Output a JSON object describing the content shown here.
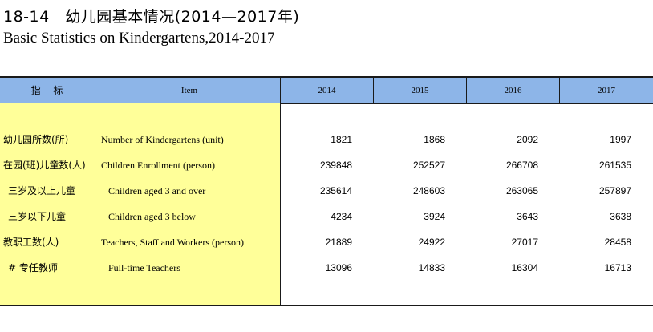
{
  "title": {
    "cn": "18-14　幼儿园基本情况(2014—2017年)",
    "en": "Basic Statistics on Kindergartens,2014-2017"
  },
  "header": {
    "indicator_cn": "指 标",
    "item_en": "Item",
    "years": [
      "2014",
      "2015",
      "2016",
      "2017"
    ]
  },
  "rows": [
    {
      "cn": "幼儿园所数(所)",
      "en": "Number of Kindergartens (unit)",
      "indent": false,
      "values": [
        "1821",
        "1868",
        "2092",
        "1997"
      ]
    },
    {
      "cn": "在园(班)儿童数(人)",
      "en": "Children Enrollment (person)",
      "indent": false,
      "values": [
        "239848",
        "252527",
        "266708",
        "261535"
      ]
    },
    {
      "cn": "三岁及以上儿童",
      "en": "Children aged 3 and over",
      "indent": true,
      "values": [
        "235614",
        "248603",
        "263065",
        "257897"
      ]
    },
    {
      "cn": "三岁以下儿童",
      "en": "Children aged 3 below",
      "indent": true,
      "values": [
        "4234",
        "3924",
        "3643",
        "3638"
      ]
    },
    {
      "cn": "教职工数(人)",
      "en": "Teachers, Staff and Workers (person)",
      "indent": false,
      "values": [
        "21889",
        "24922",
        "27017",
        "28458"
      ]
    },
    {
      "cn": "# 专任教师",
      "en": "Full-time Teachers",
      "indent": true,
      "values": [
        "13096",
        "14833",
        "16304",
        "16713"
      ]
    }
  ],
  "colors": {
    "header_bg": "#8db5e8",
    "stub_bg": "#ffff99",
    "rule": "#1a1a1a"
  }
}
